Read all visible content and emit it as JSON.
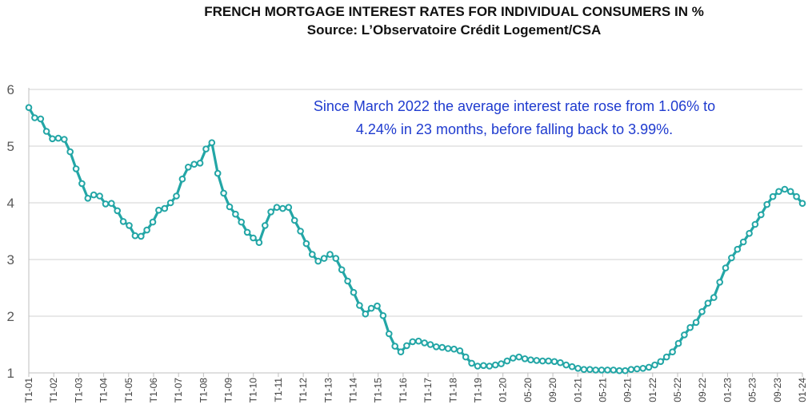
{
  "chart_data": {
    "type": "line",
    "title": "FRENCH MORTGAGE INTEREST RATES FOR INDIVIDUAL CONSUMERS IN %",
    "subtitle": "Source: L’Observatoire Crédit Logement/CSA",
    "annotation": [
      "Since March 2022 the average interest rate rose from 1.06% to",
      "4.24% in 23 months, before falling back to 3.99%."
    ],
    "ylim": [
      1,
      6
    ],
    "yticks": [
      1,
      2,
      3,
      4,
      5,
      6
    ],
    "grid": true,
    "line_color": "#23a6a6",
    "x_tick_labels": [
      "T1-01",
      "T1-02",
      "T1-03",
      "T1-04",
      "T1-05",
      "T1-06",
      "T1-07",
      "T1-08",
      "T1-09",
      "T1-10",
      "T1-11",
      "T1-12",
      "T1-13",
      "T1-14",
      "T1-15",
      "T1-16",
      "T1-17",
      "T1-18",
      "T1-19",
      "01-20",
      "05-20",
      "09-20",
      "01-21",
      "05-21",
      "09-21",
      "01-22",
      "05-22",
      "09-22",
      "01-23",
      "05-23",
      "09-23",
      "01-24"
    ],
    "values": [
      5.68,
      5.5,
      5.48,
      5.26,
      5.13,
      5.14,
      5.12,
      4.9,
      4.6,
      4.34,
      4.08,
      4.14,
      4.12,
      3.98,
      3.99,
      3.86,
      3.67,
      3.6,
      3.42,
      3.41,
      3.52,
      3.66,
      3.87,
      3.9,
      4.0,
      4.12,
      4.42,
      4.63,
      4.68,
      4.7,
      4.95,
      5.06,
      4.52,
      4.17,
      3.93,
      3.8,
      3.66,
      3.48,
      3.38,
      3.3,
      3.6,
      3.84,
      3.92,
      3.9,
      3.92,
      3.69,
      3.5,
      3.28,
      3.09,
      2.97,
      3.02,
      3.09,
      3.02,
      2.82,
      2.62,
      2.42,
      2.19,
      2.04,
      2.14,
      2.18,
      2.01,
      1.69,
      1.47,
      1.37,
      1.48,
      1.55,
      1.56,
      1.53,
      1.5,
      1.46,
      1.45,
      1.43,
      1.42,
      1.39,
      1.28,
      1.17,
      1.12,
      1.13,
      1.12,
      1.14,
      1.16,
      1.21,
      1.26,
      1.28,
      1.25,
      1.23,
      1.22,
      1.21,
      1.21,
      1.2,
      1.18,
      1.14,
      1.11,
      1.08,
      1.06,
      1.06,
      1.05,
      1.05,
      1.05,
      1.05,
      1.04,
      1.04,
      1.06,
      1.07,
      1.08,
      1.1,
      1.14,
      1.2,
      1.28,
      1.37,
      1.52,
      1.67,
      1.8,
      1.89,
      2.08,
      2.23,
      2.33,
      2.6,
      2.85,
      3.03,
      3.18,
      3.31,
      3.46,
      3.62,
      3.79,
      3.97,
      4.11,
      4.2,
      4.24,
      4.2,
      4.11,
      3.99
    ]
  }
}
